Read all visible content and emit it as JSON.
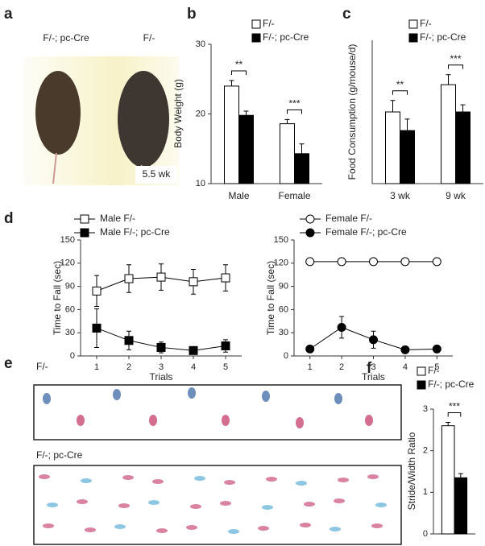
{
  "photo": {
    "panel": "a",
    "labels": [
      "F/-; pc-Cre",
      "F/-"
    ],
    "age": "5.5 wk"
  },
  "footprints": {
    "panel": "e",
    "labels": [
      "F/-",
      "F/-; pc-Cre"
    ]
  },
  "chart_data": [
    {
      "type": "bar",
      "panel": "b",
      "ylabel": "Body Weight (g)",
      "categories": [
        "Male",
        "Female"
      ],
      "series": [
        {
          "name": "F/-",
          "color": "#ffffff",
          "values": [
            24,
            18.6
          ],
          "errors": [
            0.8,
            0.6
          ]
        },
        {
          "name": "F/-; pc-Cre",
          "color": "#000000",
          "values": [
            19.8,
            14.3
          ],
          "errors": [
            0.6,
            1.4
          ]
        }
      ],
      "significance": [
        "**",
        "***"
      ],
      "ylim": [
        10,
        30
      ],
      "yticks": [
        10,
        20,
        30
      ]
    },
    {
      "type": "bar",
      "panel": "c",
      "ylabel": "Food Consumption (g/mouse/d)",
      "categories": [
        "3 wk",
        "9 wk"
      ],
      "series": [
        {
          "name": "F/-",
          "color": "#ffffff",
          "values": [
            2.5,
            3.45
          ],
          "errors": [
            0.4,
            0.35
          ]
        },
        {
          "name": "F/-; pc-Cre",
          "color": "#000000",
          "values": [
            1.85,
            2.5
          ],
          "errors": [
            0.4,
            0.25
          ]
        }
      ],
      "significance": [
        "**",
        "***"
      ],
      "ylim": [
        0,
        5
      ]
    },
    {
      "type": "line",
      "panel": "d",
      "ylabel": "Time to Fall (sec)",
      "xlabel": "Trials",
      "x": [
        1,
        2,
        3,
        4,
        5
      ],
      "series": [
        {
          "name": "Male F/-",
          "color": "#000000",
          "marker": "square",
          "fill": "#ffffff",
          "values": [
            84,
            100,
            102,
            96,
            101
          ],
          "errors": [
            20,
            18,
            17,
            16,
            17
          ]
        },
        {
          "name": "Male F/-; pc-Cre",
          "color": "#000000",
          "marker": "square",
          "fill": "#000000",
          "values": [
            36,
            20,
            11,
            7,
            13
          ],
          "errors": [
            25,
            12,
            7,
            4,
            8
          ]
        }
      ],
      "xlim": [
        0.5,
        5.5
      ],
      "xticks": [
        1,
        2,
        3,
        4,
        5
      ],
      "ylim": [
        0,
        150
      ],
      "yticks": [
        0,
        30,
        60,
        90,
        120,
        150
      ]
    },
    {
      "type": "line",
      "ylabel": "Time to Fall (sec)",
      "xlabel": "Trials",
      "x": [
        1,
        2,
        3,
        4,
        5
      ],
      "series": [
        {
          "name": "Female F/-",
          "color": "#000000",
          "marker": "circle",
          "fill": "#ffffff",
          "values": [
            122,
            122,
            122,
            122,
            122
          ],
          "errors": [
            0,
            0,
            0,
            0,
            0
          ]
        },
        {
          "name": "Female F/-; pc-Cre",
          "color": "#000000",
          "marker": "circle",
          "fill": "#000000",
          "values": [
            9,
            37,
            21,
            8,
            9
          ],
          "errors": [
            2,
            14,
            11,
            2,
            3
          ]
        }
      ],
      "xlim": [
        0.5,
        5.5
      ],
      "xticks": [
        1,
        2,
        3,
        4,
        5
      ],
      "ylim": [
        0,
        150
      ],
      "yticks": [
        0,
        30,
        60,
        90,
        120,
        150
      ]
    },
    {
      "type": "bar",
      "panel": "f",
      "ylabel": "Stride/Width Ratio",
      "categories": [
        null
      ],
      "series": [
        {
          "name": "F/-",
          "color": "#ffffff",
          "values": [
            2.6
          ],
          "errors": [
            0.08
          ]
        },
        {
          "name": "F/-; pc-Cre",
          "color": "#000000",
          "values": [
            1.35
          ],
          "errors": [
            0.1
          ]
        }
      ],
      "significance": [
        "***"
      ],
      "ylim": [
        0,
        3
      ],
      "yticks": [
        0,
        1,
        2,
        3
      ]
    }
  ]
}
